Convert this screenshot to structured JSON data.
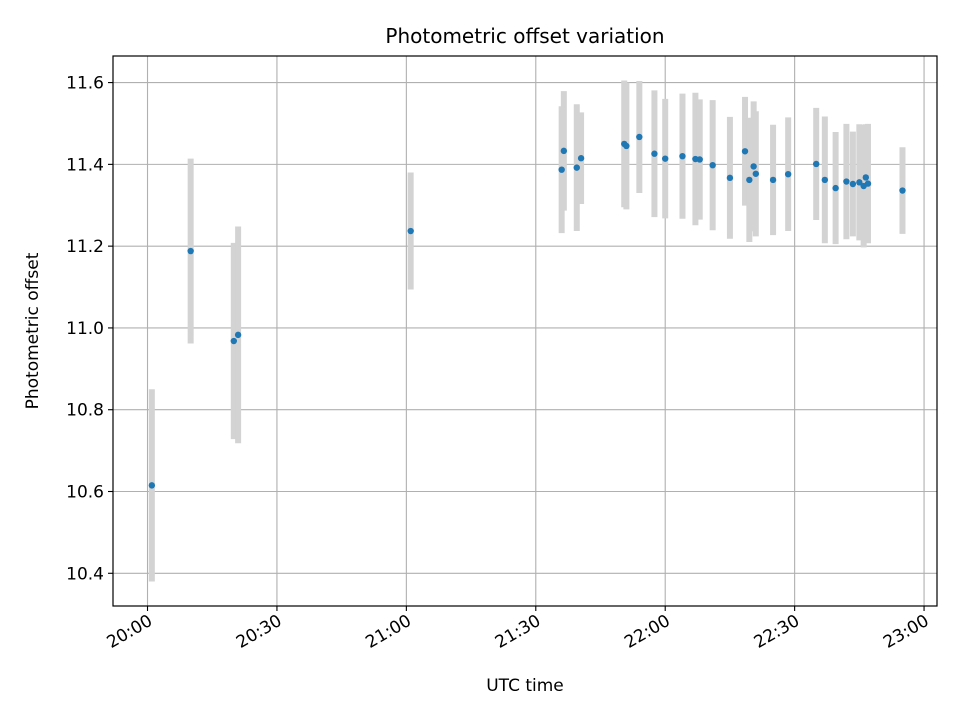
{
  "chart_data": {
    "type": "scatter",
    "title": "Photometric offset variation",
    "xlabel": "UTC time",
    "ylabel": "Photometric offset",
    "x_is_time": true,
    "xlim": [
      "19:52",
      "23:03"
    ],
    "ylim": [
      10.32,
      11.665
    ],
    "x_ticks": [
      "20:00",
      "20:30",
      "21:00",
      "21:30",
      "22:00",
      "22:30",
      "23:00"
    ],
    "y_ticks": [
      10.4,
      10.6,
      10.8,
      11.0,
      11.2,
      11.4,
      11.6
    ],
    "y_tick_labels": [
      "10.4",
      "10.6",
      "10.8",
      "11.0",
      "11.2",
      "11.4",
      "11.6"
    ],
    "grid": true,
    "colors": {
      "point": "#1f77b4",
      "errorbar": "#d3d3d3",
      "grid": "#b0b0b0",
      "axes": "#000000"
    },
    "series": [
      {
        "x": [
          "20:01",
          "20:10",
          "20:20",
          "20:21",
          "21:01",
          "21:36",
          "21:36.5",
          "21:39.5",
          "21:40.5",
          "21:50.5",
          "21:51",
          "21:54",
          "21:57.5",
          "22:00",
          "22:04",
          "22:07",
          "22:08",
          "22:11",
          "22:15",
          "22:18.5",
          "22:19.5",
          "22:20.5",
          "22:21",
          "22:25",
          "22:28.5",
          "22:35",
          "22:37",
          "22:39.5",
          "22:42",
          "22:43.5",
          "22:45",
          "22:46",
          "22:46.5",
          "22:47",
          "22:55"
        ],
        "y": [
          10.615,
          11.188,
          10.968,
          10.983,
          11.237,
          11.387,
          11.433,
          11.392,
          11.415,
          11.45,
          11.445,
          11.467,
          11.426,
          11.414,
          11.42,
          11.413,
          11.412,
          11.398,
          11.367,
          11.432,
          11.362,
          11.395,
          11.377,
          11.362,
          11.376,
          11.401,
          11.362,
          11.342,
          11.358,
          11.352,
          11.356,
          11.347,
          11.368,
          11.353,
          11.336
        ],
        "yerr": [
          0.235,
          0.226,
          0.24,
          0.265,
          0.143,
          0.155,
          0.146,
          0.155,
          0.112,
          0.155,
          0.155,
          0.137,
          0.155,
          0.146,
          0.153,
          0.162,
          0.147,
          0.159,
          0.149,
          0.133,
          0.152,
          0.159,
          0.153,
          0.135,
          0.139,
          0.137,
          0.155,
          0.137,
          0.141,
          0.128,
          0.142,
          0.15,
          0.13,
          0.146,
          0.106
        ]
      }
    ]
  }
}
